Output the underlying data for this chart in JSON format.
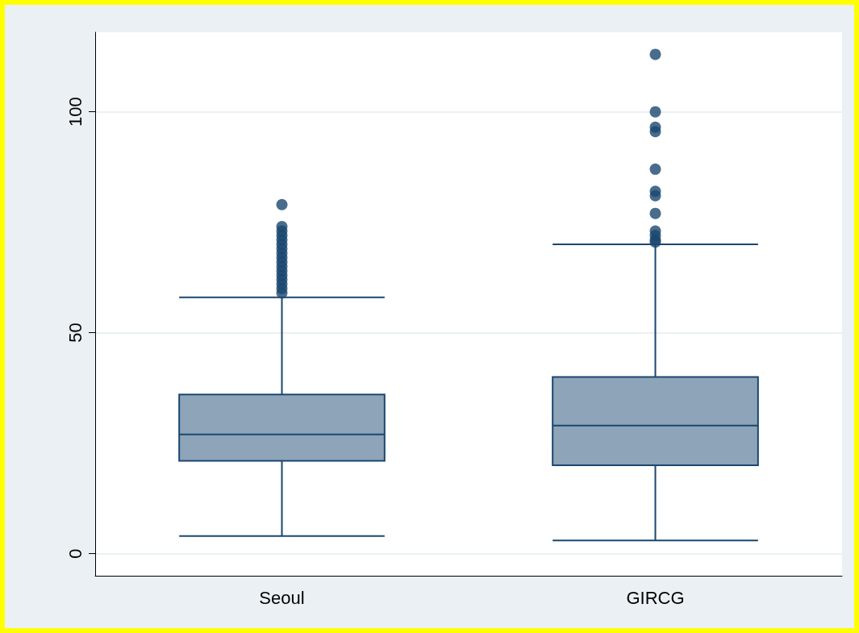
{
  "chart_data": {
    "type": "box",
    "categories": [
      "Seoul",
      "GIRCG"
    ],
    "color": "#8ea4b9",
    "boxes": [
      {
        "low": 4,
        "q1": 21,
        "median": 27,
        "q3": 36,
        "high": 58,
        "outliers": [
          59,
          60,
          61,
          62,
          63,
          64,
          65,
          66,
          67,
          68,
          69,
          70,
          71,
          72,
          73,
          74,
          79
        ]
      },
      {
        "low": 3,
        "q1": 20,
        "median": 29,
        "q3": 40,
        "high": 70,
        "outliers": [
          70.5,
          71,
          72,
          73,
          77,
          81,
          82,
          87,
          95.5,
          96.5,
          100,
          113
        ]
      }
    ],
    "ylim": [
      -5,
      118
    ],
    "yticks": [
      0,
      50,
      100
    ],
    "grid": "y",
    "legend": false
  }
}
